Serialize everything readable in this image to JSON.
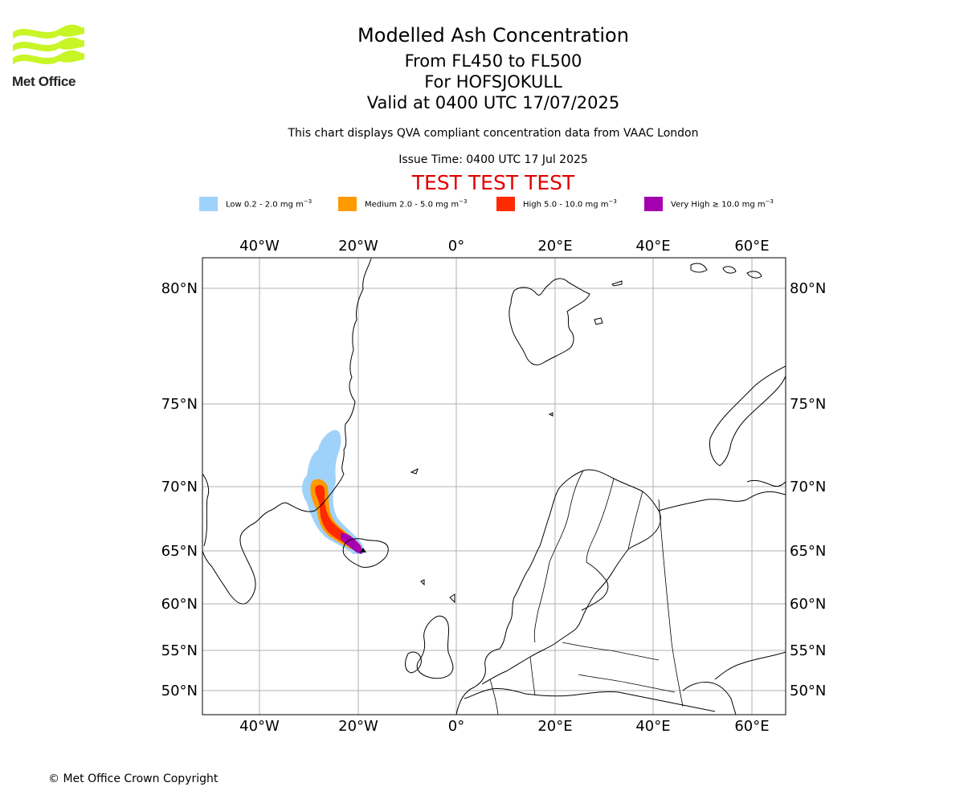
{
  "logo": {
    "text": "Met Office",
    "color": "#c8f526"
  },
  "title": {
    "line1": "Modelled Ash Concentration",
    "line2": "From FL450 to FL500",
    "line3": "For HOFSJOKULL",
    "line4": "Valid at 0400 UTC 17/07/2025"
  },
  "subtitle": "This chart displays QVA compliant concentration data from VAAC London",
  "issue_time": "Issue Time: 0400 UTC 17 Jul 2025",
  "test_banner": "TEST TEST TEST",
  "legend": [
    {
      "label": "Low 0.2 - 2.0 mg m",
      "sup": "−3",
      "color": "#9fd2fb"
    },
    {
      "label": "Medium 2.0 - 5.0 mg m",
      "sup": "−3",
      "color": "#ff9a00"
    },
    {
      "label": "High 5.0 - 10.0 mg m",
      "sup": "−3",
      "color": "#ff2a00"
    },
    {
      "label": "Very High ≥ 10.0 mg m",
      "sup": "−3",
      "color": "#a400b0"
    }
  ],
  "map": {
    "lon_ticks": [
      "40°W",
      "20°W",
      "0°",
      "20°E",
      "40°E",
      "60°E"
    ],
    "lat_ticks": [
      "80°N",
      "75°N",
      "70°N",
      "65°N",
      "60°N",
      "55°N",
      "50°N"
    ],
    "grid": true,
    "grid_color": "#b0b0b0"
  },
  "copyright": "© Met Office Crown Copyright"
}
